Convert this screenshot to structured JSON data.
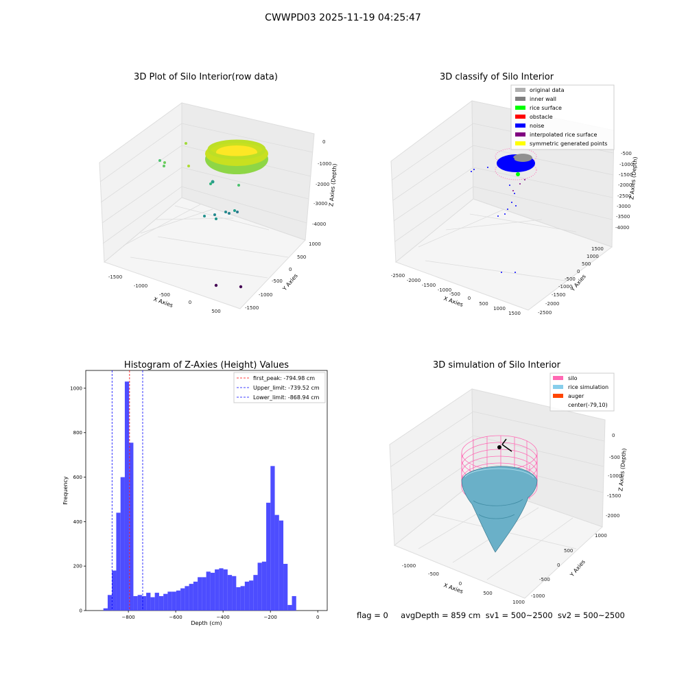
{
  "suptitle": "CWWPD03 2025-11-19 04:25:47",
  "footer": {
    "flag": "flag = 0",
    "avg_depth": "avgDepth = 859 cm",
    "sv1": "sv1 = 500~2500",
    "sv2": "sv2 = 500~2500"
  },
  "chart_data": [
    {
      "type": "scatter",
      "title": "3D Plot of Silo Interior(row data)",
      "xlabel": "X Axies",
      "ylabel": "Y Axies",
      "zlabel": "Z Axies (Depth)",
      "x_ticks": [
        "-1500",
        "-1000",
        "-500",
        "0",
        "500"
      ],
      "y_ticks": [
        "1000",
        "500",
        "0",
        "-500",
        "-1000",
        "-1500"
      ],
      "z_ticks": [
        "0",
        "-1000",
        "-2000",
        "-3000",
        "-4000"
      ],
      "colormap": "viridis",
      "grid": true
    },
    {
      "type": "scatter",
      "title": "3D classify of Silo Interior",
      "xlabel": "X Axies",
      "ylabel": "Y Axies",
      "zlabel": "Z Axies (Depth)",
      "x_ticks": [
        "-2500",
        "-2000",
        "-1500",
        "-1000",
        "-500",
        "0",
        "500",
        "1000",
        "1500"
      ],
      "y_ticks": [
        "1500",
        "1000",
        "500",
        "0",
        "-500",
        "-1000",
        "-1500",
        "-2000",
        "-2500"
      ],
      "z_ticks": [
        "-500",
        "-1000",
        "-1500",
        "-2000",
        "-2500",
        "-3000",
        "-3500",
        "-4000"
      ],
      "legend": [
        {
          "name": "original data",
          "color": "#b0b0b0"
        },
        {
          "name": "inner wall",
          "color": "#808080"
        },
        {
          "name": "rice surface",
          "color": "#00ff00"
        },
        {
          "name": "obstacle",
          "color": "#ff0000"
        },
        {
          "name": "noise",
          "color": "#0000ff"
        },
        {
          "name": "interpolated rice surface",
          "color": "#800080"
        },
        {
          "name": "symmetric generated points",
          "color": "#ffff00"
        }
      ],
      "legend_placement": "top-right",
      "grid": true
    },
    {
      "type": "bar",
      "title": "Histogram of Z-Axies (Height) Values",
      "xlabel": "Depth (cm)",
      "ylabel": "Frequency",
      "xlim": [
        -980,
        40
      ],
      "ylim": [
        0,
        1080
      ],
      "x_ticks": [
        -800,
        -600,
        -400,
        -200,
        0
      ],
      "x_tick_labels": [
        "−800",
        "−600",
        "−400",
        "−200",
        "0"
      ],
      "y_ticks": [
        0,
        200,
        400,
        600,
        800,
        1000
      ],
      "bin_start": -905.5,
      "bin_width": 18.1,
      "counts": [
        10,
        70,
        180,
        440,
        600,
        1030,
        755,
        65,
        70,
        65,
        80,
        60,
        80,
        65,
        75,
        85,
        85,
        90,
        100,
        110,
        120,
        130,
        150,
        150,
        175,
        170,
        185,
        190,
        185,
        160,
        155,
        105,
        110,
        130,
        135,
        160,
        215,
        220,
        485,
        650,
        430,
        405,
        210,
        25,
        65
      ],
      "bar_color": "#4d4dff",
      "vlines": [
        {
          "name": "first_peak: -794.98 cm",
          "x": -794.98,
          "color": "#ff0000"
        },
        {
          "name": "Upper_limit: -739.52 cm",
          "x": -739.52,
          "color": "#0000ff"
        },
        {
          "name": "Lower_limit: -868.94 cm",
          "x": -868.94,
          "color": "#0000ff"
        }
      ],
      "legend_placement": "top-right"
    },
    {
      "type": "area",
      "title": "3D simulation of Silo Interior",
      "xlabel": "X Axies",
      "ylabel": "Y Axies",
      "zlabel": "Z Axies (Depth)",
      "x_ticks": [
        "-1000",
        "-500",
        "0",
        "500",
        "1000"
      ],
      "y_ticks": [
        "1000",
        "500",
        "0",
        "-500",
        "-1000"
      ],
      "z_ticks": [
        "0",
        "-500",
        "-1000",
        "-1500",
        "-2000"
      ],
      "legend": [
        {
          "name": "silo",
          "color": "#ff69b4"
        },
        {
          "name": "rice simulation",
          "color": "#87ceeb"
        },
        {
          "name": "auger",
          "color": "#ff4500"
        },
        {
          "name": "center(-79,10)",
          "color": ""
        }
      ],
      "legend_placement": "top-right",
      "grid": true
    }
  ]
}
